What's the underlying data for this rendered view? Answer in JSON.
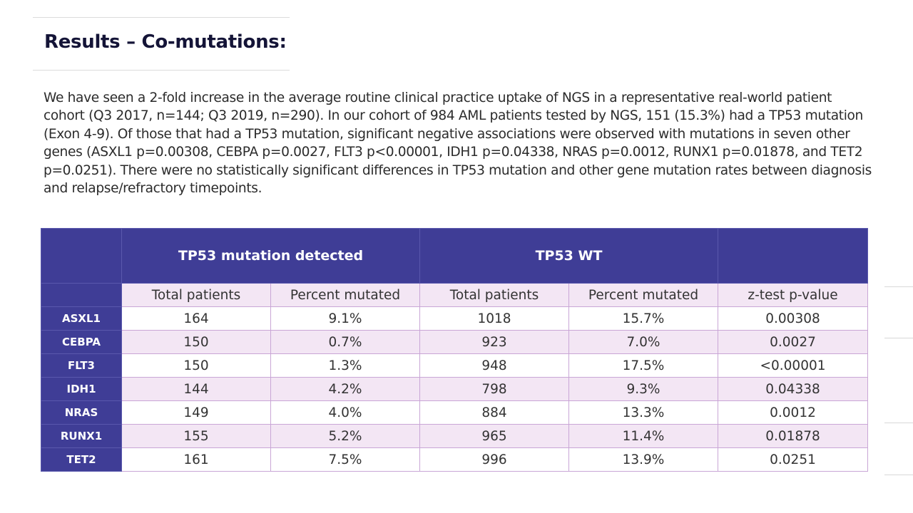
{
  "slide": {
    "title": "Results – Co-mutations:",
    "body": "We have seen a 2-fold increase in the average routine clinical practice uptake of NGS in a representative real-world patient cohort (Q3 2017, n=144; Q3 2019, n=290). In our cohort of 984 AML patients tested by NGS, 151 (15.3%) had a TP53 mutation (Exon 4-9). Of those that had a TP53 mutation, significant negative associations were observed with mutations in seven other genes (ASXL1 p=0.00308, CEBPA p=0.0027, FLT3 p<0.00001, IDH1 p=0.04338, NRAS p=0.0012, RUNX1 p=0.01878, and TET2 p=0.0251). There were no statistically significant differences in TP53 mutation and other gene mutation rates between diagnosis and relapse/refractory timepoints."
  },
  "table": {
    "group_headers": [
      "TP53 mutation detected",
      "TP53 WT"
    ],
    "column_headers": [
      "Total patients",
      "Percent mutated",
      "Total patients",
      "Percent mutated",
      "z-test p-value"
    ],
    "rows": [
      {
        "gene": "ASXL1",
        "values": [
          "164",
          "9.1%",
          "1018",
          "15.7%",
          "0.00308"
        ]
      },
      {
        "gene": "CEBPA",
        "values": [
          "150",
          "0.7%",
          "923",
          "7.0%",
          "0.0027"
        ]
      },
      {
        "gene": "FLT3",
        "values": [
          "150",
          "1.3%",
          "948",
          "17.5%",
          "<0.00001"
        ]
      },
      {
        "gene": "IDH1",
        "values": [
          "144",
          "4.2%",
          "798",
          "9.3%",
          "0.04338"
        ]
      },
      {
        "gene": "NRAS",
        "values": [
          "149",
          "4.0%",
          "884",
          "13.3%",
          "0.0012"
        ]
      },
      {
        "gene": "RUNX1",
        "values": [
          "155",
          "5.2%",
          "965",
          "11.4%",
          "0.01878"
        ]
      },
      {
        "gene": "TET2",
        "values": [
          "161",
          "7.5%",
          "996",
          "13.9%",
          "0.0251"
        ]
      }
    ]
  },
  "colors": {
    "header_bg": "#3f3d96",
    "stripe_bg": "#f3e6f4",
    "border": "#c9a6d6",
    "title": "#141437"
  }
}
